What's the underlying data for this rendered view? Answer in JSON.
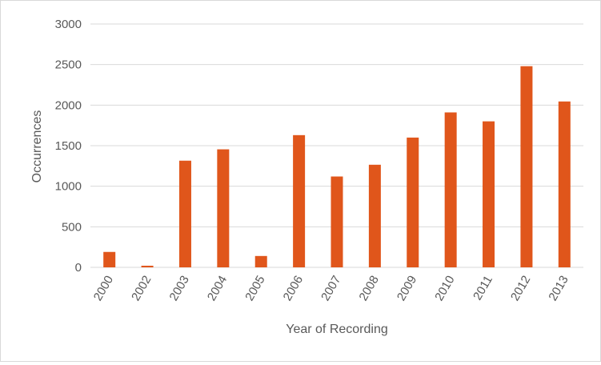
{
  "chart_data": {
    "type": "bar",
    "title": "",
    "xlabel": "Year of Recording",
    "ylabel": "Occurrences",
    "categories": [
      "2000",
      "2002",
      "2003",
      "2004",
      "2005",
      "2006",
      "2007",
      "2008",
      "2009",
      "2010",
      "2011",
      "2012",
      "2013"
    ],
    "series": [
      {
        "values": [
          190,
          20,
          1315,
          1455,
          140,
          1630,
          1120,
          1265,
          1600,
          1910,
          1800,
          2480,
          2045
        ]
      }
    ],
    "ylim": [
      0,
      3000
    ],
    "yticks": [
      0,
      500,
      1000,
      1500,
      2000,
      2500,
      3000
    ],
    "grid": true,
    "legend": "none",
    "bar_color": "#e0561b",
    "grid_color": "#d9d9d9"
  }
}
